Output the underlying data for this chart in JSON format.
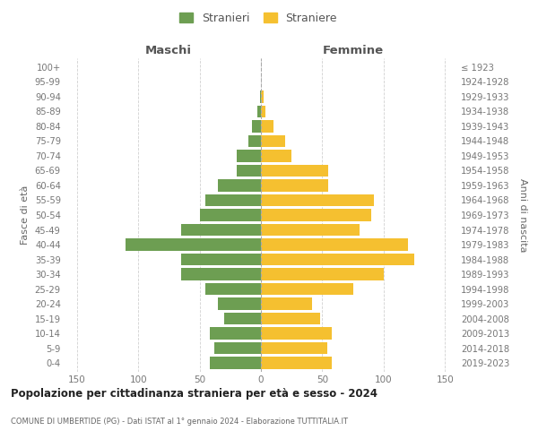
{
  "age_groups": [
    "0-4",
    "5-9",
    "10-14",
    "15-19",
    "20-24",
    "25-29",
    "30-34",
    "35-39",
    "40-44",
    "45-49",
    "50-54",
    "55-59",
    "60-64",
    "65-69",
    "70-74",
    "75-79",
    "80-84",
    "85-89",
    "90-94",
    "95-99",
    "100+"
  ],
  "birth_years": [
    "2019-2023",
    "2014-2018",
    "2009-2013",
    "2004-2008",
    "1999-2003",
    "1994-1998",
    "1989-1993",
    "1984-1988",
    "1979-1983",
    "1974-1978",
    "1969-1973",
    "1964-1968",
    "1959-1963",
    "1954-1958",
    "1949-1953",
    "1944-1948",
    "1939-1943",
    "1934-1938",
    "1929-1933",
    "1924-1928",
    "≤ 1923"
  ],
  "males": [
    42,
    38,
    42,
    30,
    35,
    45,
    65,
    65,
    110,
    65,
    50,
    45,
    35,
    20,
    20,
    10,
    7,
    3,
    1,
    0,
    0
  ],
  "females": [
    58,
    54,
    58,
    48,
    42,
    75,
    100,
    125,
    120,
    80,
    90,
    92,
    55,
    55,
    25,
    20,
    10,
    4,
    2,
    0,
    0
  ],
  "male_color": "#6d9e52",
  "female_color": "#f5c030",
  "title": "Popolazione per cittadinanza straniera per età e sesso - 2024",
  "subtitle": "COMUNE DI UMBERTIDE (PG) - Dati ISTAT al 1° gennaio 2024 - Elaborazione TUTTITALIA.IT",
  "label_maschi": "Maschi",
  "label_femmine": "Femmine",
  "ylabel_left": "Fasce di età",
  "ylabel_right": "Anni di nascita",
  "legend_stranieri": "Stranieri",
  "legend_straniere": "Straniere",
  "xlim": 160,
  "background_color": "#ffffff",
  "grid_color": "#cccccc"
}
